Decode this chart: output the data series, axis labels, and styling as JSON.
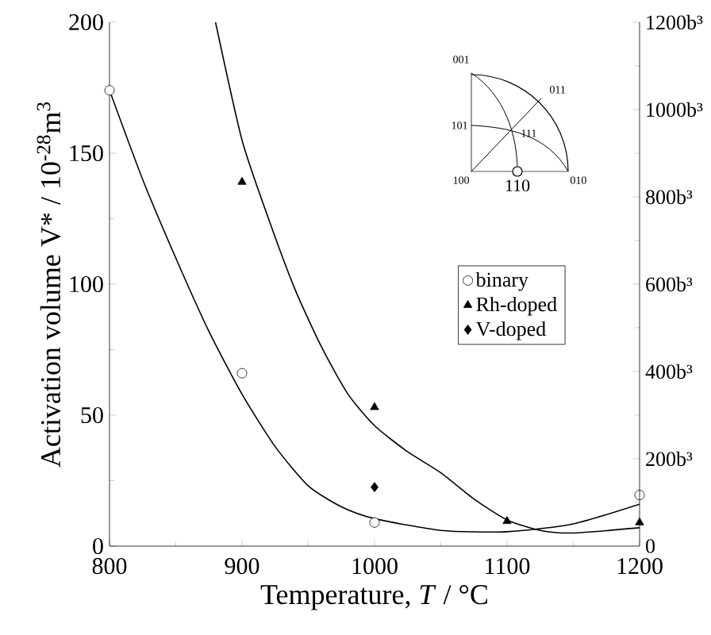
{
  "chart_data": {
    "type": "scatter",
    "xlabel": "Temperature, *T* / °C",
    "ylabel": "Activation volume V* / 10$^{-28}$m$^{3}$",
    "xlim": [
      800,
      1200
    ],
    "xticks": [
      800,
      900,
      1000,
      1100,
      1200
    ],
    "ylim": [
      0,
      200
    ],
    "yticks": [
      0,
      50,
      100,
      150,
      200
    ],
    "y2lim": [
      0,
      1200
    ],
    "y2ticks": [
      0,
      {
        "value": 200,
        "label": "200b³"
      },
      {
        "value": 400,
        "label": "400b³"
      },
      {
        "value": 600,
        "label": "600b³"
      },
      {
        "value": 800,
        "label": "800b³"
      },
      {
        "value": 1000,
        "label": "1000b³"
      },
      {
        "value": 1200,
        "label": "1200b³"
      }
    ],
    "legend": "right",
    "annotations": [
      "001",
      "011",
      "101",
      "111",
      "100",
      "010",
      "110"
    ],
    "series": [
      {
        "name": "binary",
        "marker": "circle",
        "color": "#000000",
        "x": [
          800,
          900,
          1000,
          1200
        ],
        "values": [
          174,
          66,
          9,
          19.5
        ]
      },
      {
        "name": "Rh-doped",
        "marker": "triangle",
        "color": "#000000",
        "x": [
          900,
          1000,
          1100,
          1200
        ],
        "values": [
          139,
          53,
          9.5,
          9
        ]
      },
      {
        "name": "V-doped",
        "marker": "diamond",
        "color": "#000000",
        "x": [
          1000
        ],
        "values": [
          22.5
        ]
      },
      {
        "type": "line",
        "marker": "none",
        "color": "#000000",
        "x": [
          800,
          825,
          850,
          875,
          900,
          925,
          950,
          975,
          1000,
          1050,
          1100,
          1150,
          1200
        ],
        "values": [
          174,
          140,
          110,
          82,
          58,
          38,
          23,
          15,
          10.5,
          6,
          5.5,
          8.5,
          16
        ]
      },
      {
        "type": "line",
        "marker": "none",
        "color": "#000000",
        "x": [
          880,
          900,
          920,
          940,
          960,
          980,
          1000,
          1025,
          1050,
          1075,
          1100,
          1125,
          1150,
          1200
        ],
        "values": [
          200,
          155,
          125,
          98,
          76,
          58,
          46,
          36,
          28,
          18,
          10,
          6,
          5,
          7
        ]
      }
    ]
  }
}
